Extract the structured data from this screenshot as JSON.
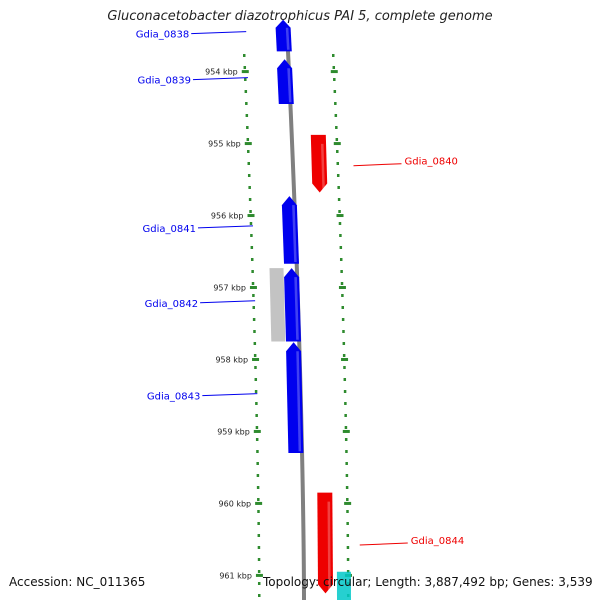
{
  "title": "Gluconacetobacter diazotrophicus PAI 5, complete genome",
  "footer": {
    "accession": "Accession: NC_011365",
    "summary": "Topology: circular; Length: 3,887,492 bp; Genes: 3,539"
  },
  "colors": {
    "forward_gene": "#0000ee",
    "reverse_gene": "#ee0000",
    "other_feature": "#b8b8b8",
    "other_feature_2": "#00c8c8",
    "backbone": "#808080",
    "tick": "#2e8b2e"
  },
  "view": {
    "topology": "circular",
    "kbp_start": 953.2,
    "kbp_end": 961.3
  },
  "scale_ticks": [
    {
      "kbp": 954,
      "label": "954 kbp"
    },
    {
      "kbp": 955,
      "label": "955 kbp"
    },
    {
      "kbp": 956,
      "label": "956 kbp"
    },
    {
      "kbp": 957,
      "label": "957 kbp"
    },
    {
      "kbp": 958,
      "label": "958 kbp"
    },
    {
      "kbp": 959,
      "label": "959 kbp"
    },
    {
      "kbp": 960,
      "label": "960 kbp"
    },
    {
      "kbp": 961,
      "label": "961 kbp"
    }
  ],
  "genes": [
    {
      "name": "Gdia_0838",
      "strand": "+",
      "start_kbp": 953.28,
      "end_kbp": 953.72,
      "color": "#0000ee",
      "label_side": "left"
    },
    {
      "name": "Gdia_0839",
      "strand": "+",
      "start_kbp": 953.83,
      "end_kbp": 954.45,
      "color": "#0000ee",
      "label_side": "left"
    },
    {
      "name": "Gdia_0840",
      "strand": "-",
      "start_kbp": 954.88,
      "end_kbp": 955.68,
      "color": "#ee0000",
      "label_side": "right"
    },
    {
      "name": "Gdia_0841",
      "strand": "+",
      "start_kbp": 955.73,
      "end_kbp": 956.67,
      "color": "#0000ee",
      "label_side": "left"
    },
    {
      "name": "Gdia_0842",
      "strand": "+",
      "start_kbp": 956.73,
      "end_kbp": 957.75,
      "color": "#0000ee",
      "label_side": "left"
    },
    {
      "name": "Gdia_0843",
      "strand": "+",
      "start_kbp": 957.76,
      "end_kbp": 959.3,
      "color": "#0000ee",
      "label_side": "left"
    },
    {
      "name": "Gdia_0844",
      "strand": "-",
      "start_kbp": 959.85,
      "end_kbp": 961.25,
      "color": "#ee0000",
      "label_side": "right"
    }
  ],
  "other_features": [
    {
      "start_kbp": 956.73,
      "end_kbp": 957.75,
      "color": "#b8b8b8",
      "track": "outer-left"
    },
    {
      "start_kbp": 960.95,
      "end_kbp": 961.5,
      "color": "#00c8c8",
      "track": "right-outer"
    }
  ]
}
